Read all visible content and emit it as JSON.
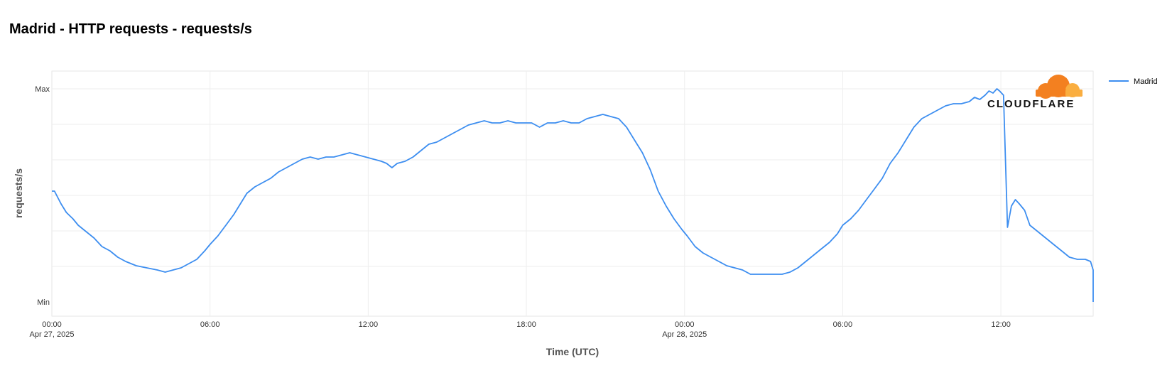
{
  "title": "Madrid - HTTP requests - requests/s",
  "logo": {
    "name": "cloudflare-logo",
    "text": "CLOUDFLARE",
    "orange": "#f38020",
    "light_orange": "#faae40"
  },
  "chart_data": {
    "type": "line",
    "xlabel": "Time (UTC)",
    "ylabel": "requests/s",
    "x_unit": "hours since Apr 27, 2025 00:00 UTC",
    "xlim": [
      0,
      39.5
    ],
    "ylim": [
      0,
      1
    ],
    "y_ticks": [
      {
        "value": 1,
        "label": "Max"
      },
      {
        "value": 0,
        "label": "Min"
      }
    ],
    "x_ticks": [
      {
        "value": 0,
        "label": "00:00",
        "sublabel": "Apr 27, 2025"
      },
      {
        "value": 6,
        "label": "06:00",
        "sublabel": ""
      },
      {
        "value": 12,
        "label": "12:00",
        "sublabel": ""
      },
      {
        "value": 18,
        "label": "18:00",
        "sublabel": ""
      },
      {
        "value": 24,
        "label": "00:00",
        "sublabel": "Apr 28, 2025"
      },
      {
        "value": 30,
        "label": "06:00",
        "sublabel": ""
      },
      {
        "value": 36,
        "label": "12:00",
        "sublabel": ""
      }
    ],
    "grid": true,
    "legend_position": "top-right",
    "series": [
      {
        "name": "Madrid",
        "color": "#3d8ef0",
        "points": [
          [
            0,
            0.52
          ],
          [
            0.1,
            0.52
          ],
          [
            0.35,
            0.46
          ],
          [
            0.55,
            0.42
          ],
          [
            0.8,
            0.39
          ],
          [
            1,
            0.36
          ],
          [
            1.3,
            0.33
          ],
          [
            1.6,
            0.3
          ],
          [
            1.9,
            0.26
          ],
          [
            2.2,
            0.24
          ],
          [
            2.5,
            0.21
          ],
          [
            2.8,
            0.19
          ],
          [
            3.2,
            0.17
          ],
          [
            3.6,
            0.16
          ],
          [
            4.0,
            0.15
          ],
          [
            4.3,
            0.14
          ],
          [
            4.6,
            0.15
          ],
          [
            4.9,
            0.16
          ],
          [
            5.2,
            0.18
          ],
          [
            5.5,
            0.2
          ],
          [
            5.8,
            0.24
          ],
          [
            6.0,
            0.27
          ],
          [
            6.3,
            0.31
          ],
          [
            6.6,
            0.36
          ],
          [
            6.9,
            0.41
          ],
          [
            7.2,
            0.47
          ],
          [
            7.4,
            0.51
          ],
          [
            7.7,
            0.54
          ],
          [
            8.0,
            0.56
          ],
          [
            8.3,
            0.58
          ],
          [
            8.6,
            0.61
          ],
          [
            8.9,
            0.63
          ],
          [
            9.2,
            0.65
          ],
          [
            9.5,
            0.67
          ],
          [
            9.8,
            0.68
          ],
          [
            10.1,
            0.67
          ],
          [
            10.4,
            0.68
          ],
          [
            10.7,
            0.68
          ],
          [
            11.0,
            0.69
          ],
          [
            11.3,
            0.7
          ],
          [
            11.6,
            0.69
          ],
          [
            11.9,
            0.68
          ],
          [
            12.2,
            0.67
          ],
          [
            12.5,
            0.66
          ],
          [
            12.7,
            0.65
          ],
          [
            12.9,
            0.63
          ],
          [
            13.1,
            0.65
          ],
          [
            13.4,
            0.66
          ],
          [
            13.7,
            0.68
          ],
          [
            14.0,
            0.71
          ],
          [
            14.3,
            0.74
          ],
          [
            14.6,
            0.75
          ],
          [
            14.9,
            0.77
          ],
          [
            15.2,
            0.79
          ],
          [
            15.5,
            0.81
          ],
          [
            15.8,
            0.83
          ],
          [
            16.1,
            0.84
          ],
          [
            16.4,
            0.85
          ],
          [
            16.7,
            0.84
          ],
          [
            17.0,
            0.84
          ],
          [
            17.3,
            0.85
          ],
          [
            17.6,
            0.84
          ],
          [
            17.9,
            0.84
          ],
          [
            18.2,
            0.84
          ],
          [
            18.5,
            0.82
          ],
          [
            18.8,
            0.84
          ],
          [
            19.1,
            0.84
          ],
          [
            19.4,
            0.85
          ],
          [
            19.7,
            0.84
          ],
          [
            20.0,
            0.84
          ],
          [
            20.3,
            0.86
          ],
          [
            20.6,
            0.87
          ],
          [
            20.9,
            0.88
          ],
          [
            21.2,
            0.87
          ],
          [
            21.5,
            0.86
          ],
          [
            21.8,
            0.82
          ],
          [
            22.1,
            0.76
          ],
          [
            22.4,
            0.7
          ],
          [
            22.7,
            0.62
          ],
          [
            23.0,
            0.52
          ],
          [
            23.3,
            0.45
          ],
          [
            23.6,
            0.39
          ],
          [
            23.9,
            0.34
          ],
          [
            24.1,
            0.31
          ],
          [
            24.4,
            0.26
          ],
          [
            24.7,
            0.23
          ],
          [
            25.0,
            0.21
          ],
          [
            25.3,
            0.19
          ],
          [
            25.6,
            0.17
          ],
          [
            25.9,
            0.16
          ],
          [
            26.2,
            0.15
          ],
          [
            26.5,
            0.13
          ],
          [
            26.8,
            0.13
          ],
          [
            27.1,
            0.13
          ],
          [
            27.4,
            0.13
          ],
          [
            27.7,
            0.13
          ],
          [
            28.0,
            0.14
          ],
          [
            28.3,
            0.16
          ],
          [
            28.6,
            0.19
          ],
          [
            28.9,
            0.22
          ],
          [
            29.2,
            0.25
          ],
          [
            29.5,
            0.28
          ],
          [
            29.8,
            0.32
          ],
          [
            30.0,
            0.36
          ],
          [
            30.3,
            0.39
          ],
          [
            30.6,
            0.43
          ],
          [
            30.9,
            0.48
          ],
          [
            31.2,
            0.53
          ],
          [
            31.5,
            0.58
          ],
          [
            31.8,
            0.65
          ],
          [
            32.1,
            0.7
          ],
          [
            32.4,
            0.76
          ],
          [
            32.7,
            0.82
          ],
          [
            33.0,
            0.86
          ],
          [
            33.3,
            0.88
          ],
          [
            33.6,
            0.9
          ],
          [
            33.9,
            0.92
          ],
          [
            34.2,
            0.93
          ],
          [
            34.5,
            0.93
          ],
          [
            34.8,
            0.94
          ],
          [
            35.0,
            0.96
          ],
          [
            35.2,
            0.95
          ],
          [
            35.4,
            0.97
          ],
          [
            35.55,
            0.99
          ],
          [
            35.7,
            0.98
          ],
          [
            35.85,
            1.0
          ],
          [
            35.95,
            0.99
          ],
          [
            36.1,
            0.97
          ],
          [
            36.25,
            0.35
          ],
          [
            36.4,
            0.45
          ],
          [
            36.55,
            0.48
          ],
          [
            36.7,
            0.46
          ],
          [
            36.9,
            0.43
          ],
          [
            37.1,
            0.36
          ],
          [
            37.4,
            0.33
          ],
          [
            37.7,
            0.3
          ],
          [
            38.0,
            0.27
          ],
          [
            38.3,
            0.24
          ],
          [
            38.6,
            0.21
          ],
          [
            38.9,
            0.2
          ],
          [
            39.2,
            0.2
          ],
          [
            39.4,
            0.19
          ],
          [
            39.5,
            0.15
          ],
          [
            39.5,
            0.0
          ]
        ]
      }
    ]
  }
}
